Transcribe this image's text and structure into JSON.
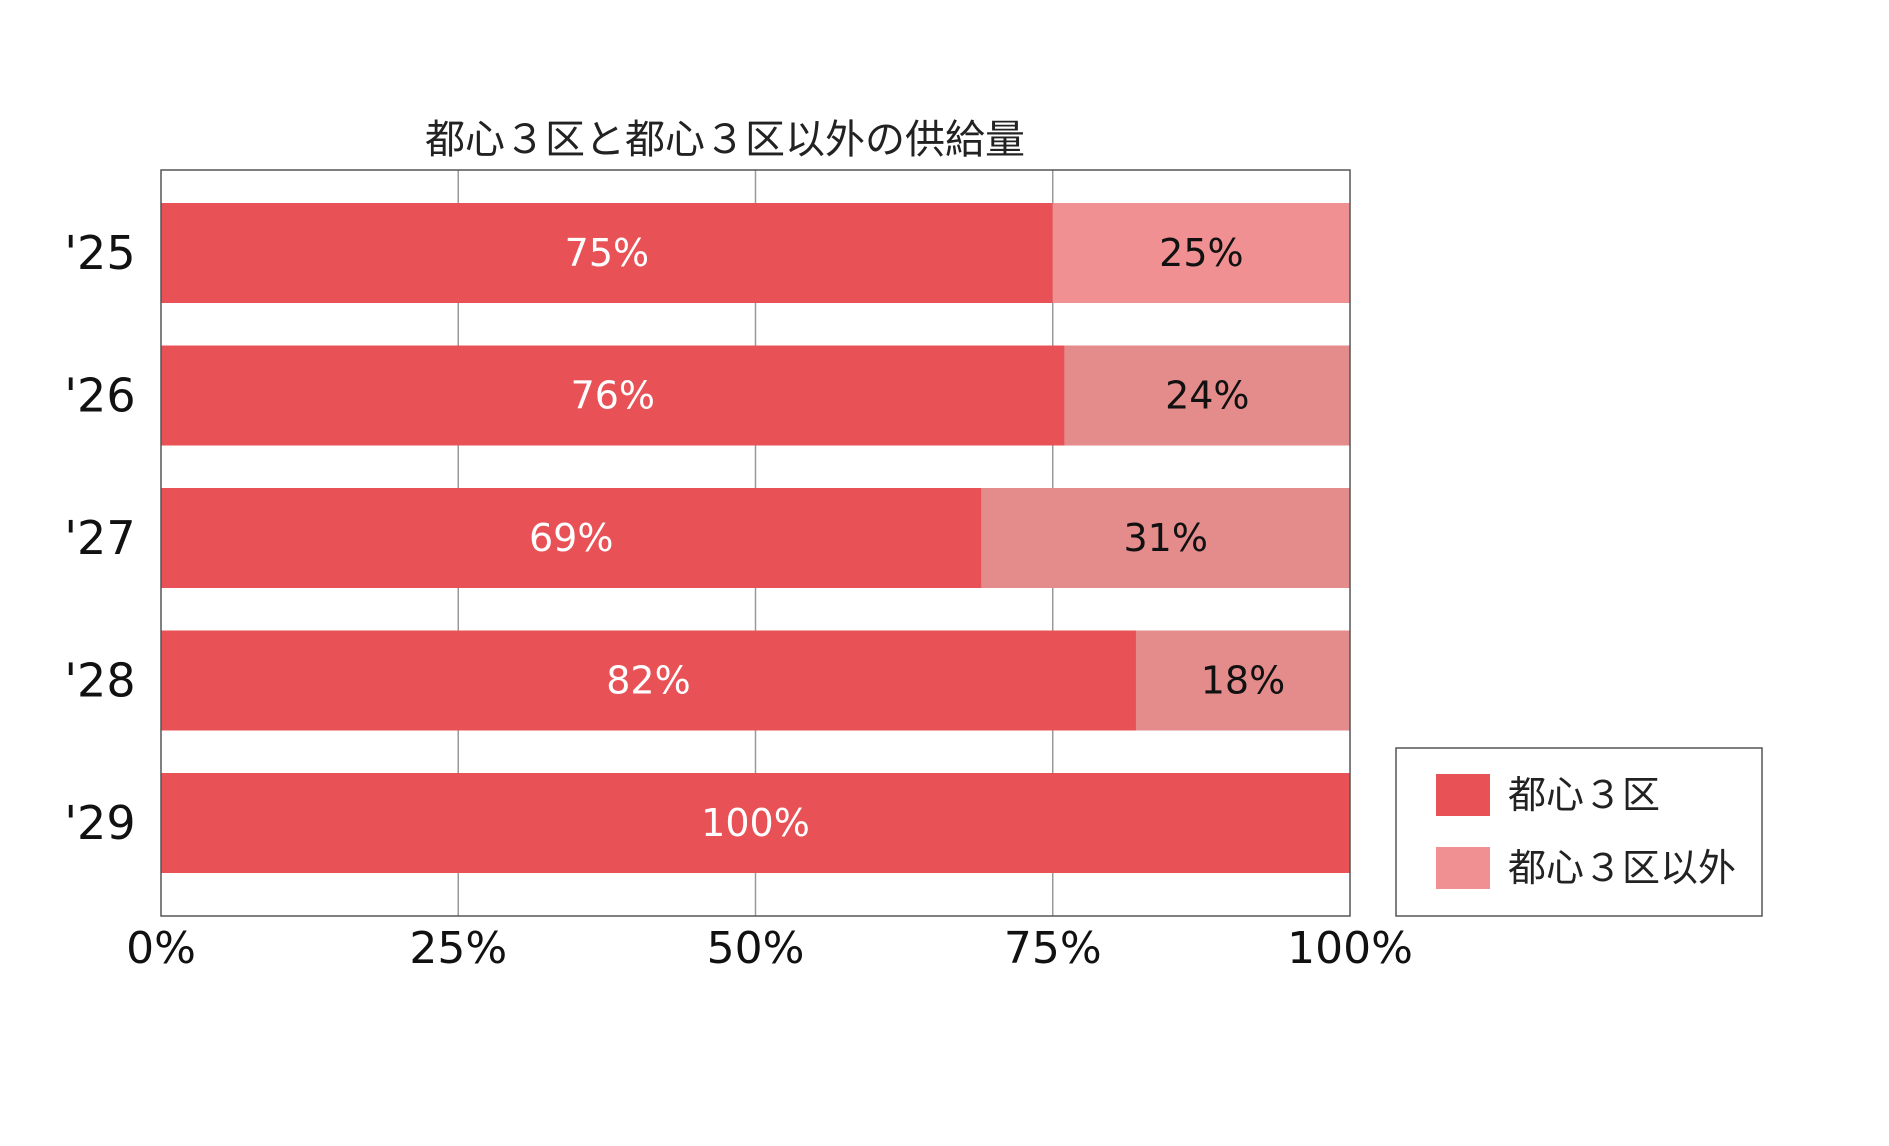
{
  "chart_data": {
    "type": "bar",
    "orientation": "horizontal",
    "stacked": true,
    "title": "都心３区と都心３区以外の供給量",
    "categories": [
      "'25",
      "'26",
      "'27",
      "'28",
      "'29"
    ],
    "series": [
      {
        "name": "都心３区",
        "values": [
          75,
          76,
          69,
          82,
          100
        ],
        "labels": [
          "75%",
          "76%",
          "69%",
          "82%",
          "100%"
        ],
        "color": "#e85256",
        "label_color": "#ffffff"
      },
      {
        "name": "都心３区以外",
        "values": [
          25,
          24,
          31,
          18,
          0
        ],
        "labels": [
          "25%",
          "24%",
          "31%",
          "18%",
          ""
        ],
        "colors": [
          "#f19092",
          "#e48b8b",
          "#e48b8b",
          "#e48b8b",
          "#e48b8b"
        ],
        "legend_color": "#f19092",
        "label_color": "#111111"
      }
    ],
    "xlim": [
      0,
      100
    ],
    "xticks": [
      0,
      25,
      50,
      75,
      100
    ],
    "xtick_labels": [
      "0%",
      "25%",
      "50%",
      "75%",
      "100%"
    ],
    "xlabel": "",
    "ylabel": "",
    "grid": true,
    "legend_position": "bottom-right",
    "colors": {
      "grid": "#999999",
      "frame": "#555555"
    }
  }
}
